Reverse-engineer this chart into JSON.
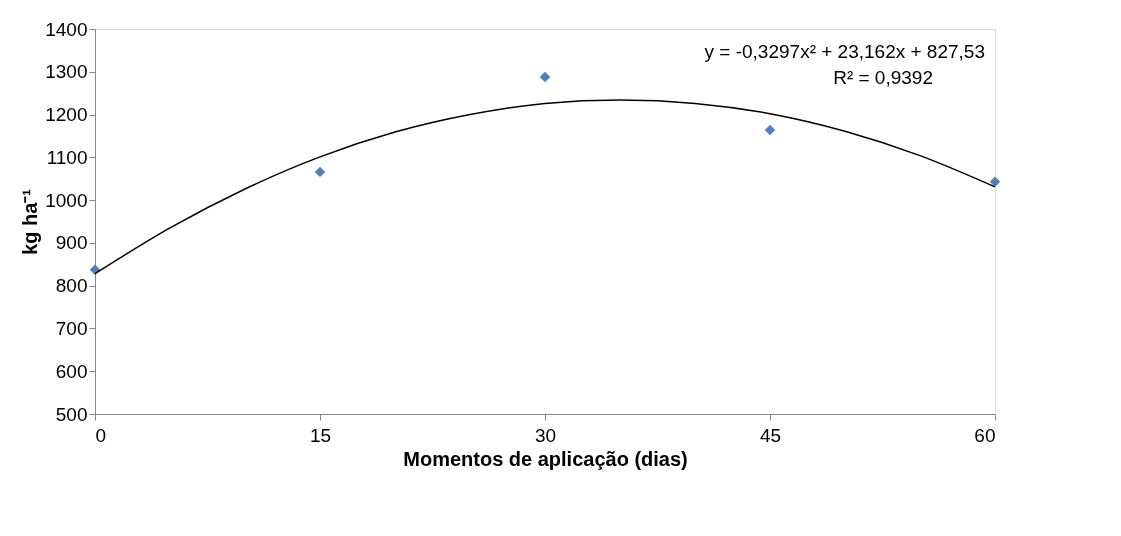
{
  "chart_data": {
    "type": "scatter",
    "xlabel": "Momentos de aplicação (dias)",
    "ylabel": "kg ha⁻¹",
    "x": [
      0,
      15,
      30,
      45,
      60
    ],
    "xlim": [
      0,
      60
    ],
    "xticks": [
      0,
      15,
      30,
      45,
      60
    ],
    "ylim": [
      500,
      1400
    ],
    "yticks": [
      500,
      600,
      700,
      800,
      900,
      1000,
      1100,
      1200,
      1300,
      1400
    ],
    "grid": false,
    "series": [
      {
        "color": "#4f81bd",
        "marker": "diamond",
        "values": [
          837,
          1066,
          1288,
          1164,
          1043
        ]
      },
      {
        "type": "line",
        "color": "#000000",
        "marker": "none",
        "x": [
          0,
          5,
          10,
          15,
          20,
          25,
          30,
          35,
          40,
          45,
          50,
          55,
          60
        ],
        "values": [
          828,
          935,
          1026,
          1101,
          1159,
          1200,
          1226,
          1234,
          1226,
          1202,
          1161,
          1104,
          1031
        ]
      }
    ],
    "annotations": [
      "y = -0,3297x² + 23,162x + 827,53",
      "R² = 0,9392"
    ]
  }
}
